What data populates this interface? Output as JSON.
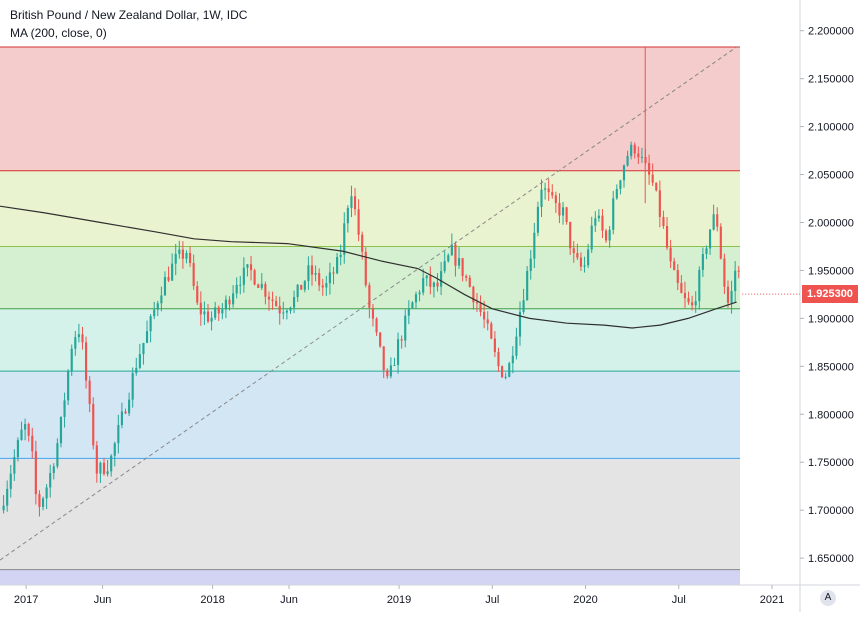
{
  "legend": {
    "title": "British Pound / New Zealand Dollar, 1W, IDC",
    "indicator": "MA (200, close, 0)"
  },
  "last_price_label": "1.925300",
  "auto_scale_label": "A",
  "colors": {
    "up": "#26a69a",
    "down": "#ef5350",
    "ma": "#2f2f2f",
    "fib_bands": [
      "#f4cccc",
      "#eaf3d0",
      "#d4f0d0",
      "#d5f2ea",
      "#d3e6f3",
      "#e4e4e4",
      "#d3d3f3"
    ],
    "fib_lines": [
      "#d32f2f",
      "#d32f2f",
      "#8bc34a",
      "#43a047",
      "#26a69a",
      "#42a5f5",
      "#888888",
      "#7e57c2"
    ]
  },
  "chart_data": {
    "type": "candlestick",
    "title": "British Pound / New Zealand Dollar, 1W, IDC",
    "indicator": "MA (200, close, 0)",
    "y_ticks": [
      "2.200000",
      "2.150000",
      "2.100000",
      "2.050000",
      "2.000000",
      "1.950000",
      "1.900000",
      "1.850000",
      "1.800000",
      "1.750000",
      "1.700000",
      "1.650000"
    ],
    "y_tick_values": [
      2.2,
      2.15,
      2.1,
      2.05,
      2.0,
      1.95,
      1.9,
      1.85,
      1.8,
      1.75,
      1.7,
      1.65
    ],
    "x_ticks": [
      "2017",
      "Jun",
      "2018",
      "Jun",
      "2019",
      "Jul",
      "2020",
      "Jul",
      "2021"
    ],
    "x_tick_values": [
      2017.0,
      2017.41,
      2018.0,
      2018.41,
      2019.0,
      2019.5,
      2020.0,
      2020.5,
      2021.0
    ],
    "ylim": [
      1.622,
      2.232
    ],
    "xlim": [
      2016.86,
      2021.15
    ],
    "last_price": 1.9253,
    "fib_levels": [
      2.183,
      2.054,
      1.975,
      1.91,
      1.845,
      1.754,
      1.638,
      1.622
    ],
    "trend_line": [
      [
        2016.86,
        1.648
      ],
      [
        2020.81,
        2.183
      ]
    ],
    "ma_points": [
      [
        2016.86,
        2.017
      ],
      [
        2017.1,
        2.01
      ],
      [
        2017.4,
        2.0
      ],
      [
        2017.7,
        1.99
      ],
      [
        2017.9,
        1.983
      ],
      [
        2018.1,
        1.98
      ],
      [
        2018.4,
        1.978
      ],
      [
        2018.7,
        1.97
      ],
      [
        2018.9,
        1.96
      ],
      [
        2019.1,
        1.952
      ],
      [
        2019.2,
        1.942
      ],
      [
        2019.35,
        1.925
      ],
      [
        2019.5,
        1.91
      ],
      [
        2019.7,
        1.9
      ],
      [
        2019.9,
        1.895
      ],
      [
        2020.1,
        1.893
      ],
      [
        2020.25,
        1.89
      ],
      [
        2020.4,
        1.893
      ],
      [
        2020.55,
        1.9
      ],
      [
        2020.7,
        1.91
      ],
      [
        2020.81,
        1.917
      ]
    ],
    "path_points": [
      [
        2016.86,
        1.7
      ],
      [
        2016.93,
        1.75
      ],
      [
        2016.99,
        1.79
      ],
      [
        2017.03,
        1.76
      ],
      [
        2017.06,
        1.7
      ],
      [
        2017.12,
        1.73
      ],
      [
        2017.18,
        1.78
      ],
      [
        2017.25,
        1.88
      ],
      [
        2017.29,
        1.89
      ],
      [
        2017.33,
        1.82
      ],
      [
        2017.38,
        1.74
      ],
      [
        2017.45,
        1.75
      ],
      [
        2017.52,
        1.8
      ],
      [
        2017.6,
        1.86
      ],
      [
        2017.66,
        1.89
      ],
      [
        2017.72,
        1.93
      ],
      [
        2017.8,
        1.96
      ],
      [
        2017.86,
        1.97
      ],
      [
        2017.92,
        1.91
      ],
      [
        2017.99,
        1.9
      ],
      [
        2018.06,
        1.91
      ],
      [
        2018.13,
        1.94
      ],
      [
        2018.2,
        1.95
      ],
      [
        2018.28,
        1.93
      ],
      [
        2018.36,
        1.91
      ],
      [
        2018.44,
        1.92
      ],
      [
        2018.52,
        1.95
      ],
      [
        2018.6,
        1.93
      ],
      [
        2018.68,
        1.96
      ],
      [
        2018.74,
        2.04
      ],
      [
        2018.79,
        1.98
      ],
      [
        2018.84,
        1.91
      ],
      [
        2018.89,
        1.87
      ],
      [
        2018.94,
        1.83
      ],
      [
        2018.99,
        1.87
      ],
      [
        2019.06,
        1.91
      ],
      [
        2019.13,
        1.94
      ],
      [
        2019.2,
        1.93
      ],
      [
        2019.28,
        1.97
      ],
      [
        2019.34,
        1.95
      ],
      [
        2019.41,
        1.92
      ],
      [
        2019.47,
        1.89
      ],
      [
        2019.53,
        1.85
      ],
      [
        2019.58,
        1.84
      ],
      [
        2019.64,
        1.9
      ],
      [
        2019.7,
        1.96
      ],
      [
        2019.76,
        2.04
      ],
      [
        2019.82,
        2.02
      ],
      [
        2019.88,
        2.01
      ],
      [
        2019.94,
        1.96
      ],
      [
        2019.99,
        1.95
      ],
      [
        2020.05,
        2.01
      ],
      [
        2020.11,
        1.98
      ],
      [
        2020.17,
        2.04
      ],
      [
        2020.22,
        2.07
      ],
      [
        2020.27,
        2.08
      ],
      [
        2020.31,
        2.06
      ],
      [
        2020.36,
        2.04
      ],
      [
        2020.41,
        2.0
      ],
      [
        2020.46,
        1.95
      ],
      [
        2020.52,
        1.92
      ],
      [
        2020.57,
        1.91
      ],
      [
        2020.62,
        1.95
      ],
      [
        2020.66,
        1.99
      ],
      [
        2020.7,
        2.01
      ],
      [
        2020.74,
        1.94
      ],
      [
        2020.77,
        1.91
      ],
      [
        2020.81,
        1.96
      ],
      [
        2020.84,
        1.9253
      ]
    ],
    "spike": {
      "x": 2020.32,
      "high": 2.183,
      "low": 2.02
    }
  }
}
